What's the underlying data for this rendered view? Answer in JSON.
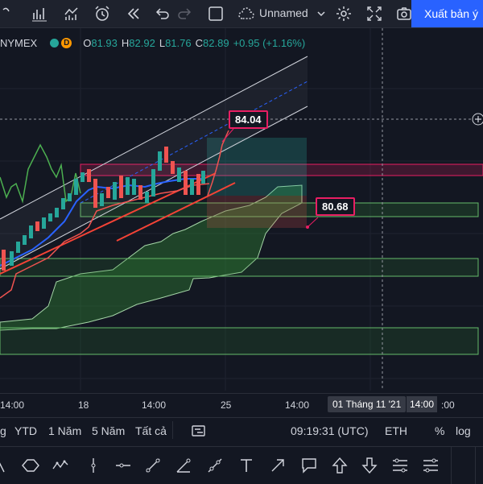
{
  "toolbar": {
    "layout_name": "Unnamed",
    "publish_label": "Xuất bản ý"
  },
  "legend": {
    "symbol": "NYMEX",
    "badge": "D",
    "open_key": "O",
    "open": "81.93",
    "high_key": "H",
    "high": "82.92",
    "low_key": "L",
    "low": "81.76",
    "close_key": "C",
    "close": "82.89",
    "change": "+0.95 (+1.16%)"
  },
  "chart": {
    "upper_label": "84.04",
    "lower_label": "80.68",
    "colors": {
      "up": "#26a69a",
      "down": "#ef5350",
      "label_border": "#e91e63",
      "cloud": "#2e7d32",
      "tenkan": "#2962ff",
      "chikou": "#4caf50"
    }
  },
  "time_axis": {
    "ticks": [
      "14:00",
      "18",
      "14:00",
      "25",
      "14:00",
      "14:00"
    ],
    "crosshair_date": "01 Tháng 11 '21",
    "crosshair_time": "14:00",
    "trailing": ":00"
  },
  "range_bar": {
    "items": [
      "g",
      "YTD",
      "1 Năm",
      "5 Năm",
      "Tất cả"
    ],
    "clock": "09:19:31 (UTC)",
    "session": "ETH",
    "percent": "%",
    "log": "log"
  },
  "drawing_tools": [
    "cursor-tool",
    "pattern-tool",
    "path-tool",
    "vertical-line-tool",
    "horizontal-ray-tool",
    "trend-line-tool",
    "angle-tool",
    "polyline-tool",
    "text-tool",
    "arrow-tool",
    "callout-tool",
    "arrow-up-tool",
    "arrow-down-tool",
    "price-range-tool",
    "date-range-tool"
  ]
}
